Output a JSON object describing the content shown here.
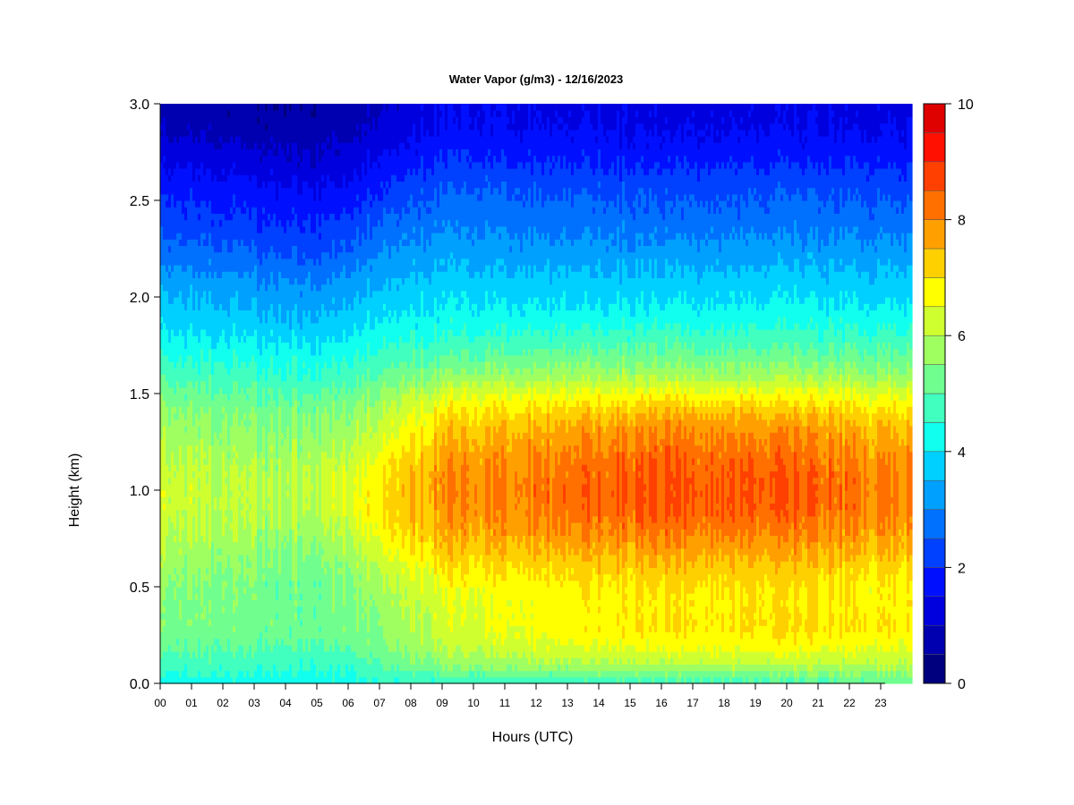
{
  "chart_data": {
    "type": "heatmap",
    "title": "Water Vapor (g/m3) - 12/16/2023",
    "xlabel": "Hours (UTC)",
    "ylabel": "Height (km)",
    "x_tick_labels": [
      "00",
      "01",
      "02",
      "03",
      "04",
      "05",
      "06",
      "07",
      "08",
      "09",
      "10",
      "11",
      "12",
      "13",
      "14",
      "15",
      "16",
      "17",
      "18",
      "19",
      "20",
      "21",
      "22",
      "23"
    ],
    "xlim": [
      0,
      24
    ],
    "y_tick_labels": [
      "0.0",
      "0.5",
      "1.0",
      "1.5",
      "2.0",
      "2.5",
      "3.0"
    ],
    "y_ticks": [
      0.0,
      0.5,
      1.0,
      1.5,
      2.0,
      2.5,
      3.0
    ],
    "ylim": [
      0,
      3.0
    ],
    "colorbar": {
      "min": 0,
      "max": 10,
      "levels": 20,
      "tick_values": [
        0,
        2,
        4,
        6,
        8,
        10
      ],
      "tick_labels": [
        "0",
        "2",
        "4",
        "6",
        "8",
        "10"
      ],
      "colors": [
        "#00007f",
        "#0000b0",
        "#0000df",
        "#0010ff",
        "#0040ff",
        "#0070ff",
        "#00a0ff",
        "#00d0ff",
        "#10ffef",
        "#40ffbf",
        "#70ff8f",
        "#a0ff60",
        "#d0ff30",
        "#ffff00",
        "#ffd000",
        "#ffa000",
        "#ff7000",
        "#ff4000",
        "#ff1000",
        "#df0000",
        "#7f0000"
      ]
    },
    "hours": [
      0,
      1,
      2,
      3,
      4,
      5,
      6,
      7,
      8,
      9,
      10,
      11,
      12,
      13,
      14,
      15,
      16,
      17,
      18,
      19,
      20,
      21,
      22,
      23,
      24
    ],
    "heights": [
      0.0,
      0.1,
      0.2,
      0.3,
      0.4,
      0.5,
      0.6,
      0.7,
      0.8,
      0.9,
      1.0,
      1.1,
      1.2,
      1.3,
      1.4,
      1.5,
      1.6,
      1.7,
      1.8,
      1.9,
      2.0,
      2.1,
      2.2,
      2.3,
      2.4,
      2.5,
      2.6,
      2.7,
      2.8,
      2.9,
      3.0
    ],
    "profiles": {
      "h00": [
        4.3,
        4.8,
        5.2,
        5.4,
        5.5,
        5.6,
        5.8,
        6.0,
        6.2,
        6.3,
        6.4,
        6.3,
        6.1,
        5.9,
        5.7,
        5.3,
        4.9,
        4.5,
        4.1,
        3.8,
        3.6,
        3.3,
        2.9,
        2.6,
        2.3,
        2.1,
        1.8,
        1.5,
        1.2,
        0.9,
        0.8
      ],
      "h03": [
        4.2,
        4.7,
        5.1,
        5.3,
        5.3,
        5.3,
        5.4,
        5.6,
        5.8,
        5.9,
        6.0,
        5.9,
        5.7,
        5.5,
        5.3,
        5.0,
        4.6,
        4.3,
        3.9,
        3.6,
        3.3,
        3.0,
        2.6,
        2.3,
        2.0,
        1.8,
        1.5,
        1.2,
        0.9,
        0.7,
        0.6
      ],
      "h05": [
        4.2,
        4.6,
        5.0,
        5.2,
        5.2,
        5.2,
        5.3,
        5.5,
        5.8,
        6.0,
        6.1,
        6.0,
        5.8,
        5.6,
        5.4,
        5.0,
        4.6,
        4.2,
        3.8,
        3.5,
        3.2,
        2.9,
        2.5,
        2.2,
        1.9,
        1.7,
        1.4,
        1.1,
        0.9,
        0.7,
        0.6
      ],
      "h07": [
        4.4,
        4.9,
        5.3,
        5.5,
        5.6,
        5.7,
        6.0,
        6.3,
        6.6,
        6.8,
        6.8,
        6.7,
        6.4,
        6.1,
        5.8,
        5.4,
        5.0,
        4.6,
        4.2,
        3.9,
        3.6,
        3.3,
        3.0,
        2.7,
        2.4,
        2.1,
        1.8,
        1.5,
        1.2,
        1.0,
        0.9
      ],
      "h09": [
        4.6,
        5.6,
        6.1,
        6.3,
        6.4,
        6.6,
        7.0,
        7.4,
        7.7,
        7.9,
        8.0,
        7.9,
        7.7,
        7.4,
        7.0,
        6.4,
        5.6,
        5.0,
        4.5,
        4.2,
        3.9,
        3.7,
        3.4,
        3.2,
        2.9,
        2.7,
        2.4,
        2.1,
        1.8,
        1.6,
        1.5
      ],
      "h12": [
        4.6,
        5.8,
        6.4,
        6.7,
        6.7,
        6.8,
        7.1,
        7.5,
        7.9,
        8.1,
        8.2,
        8.1,
        7.9,
        7.6,
        7.2,
        6.5,
        5.7,
        5.1,
        4.6,
        4.2,
        3.9,
        3.6,
        3.3,
        3.0,
        2.8,
        2.6,
        2.3,
        2.0,
        1.7,
        1.5,
        1.4
      ],
      "h16": [
        4.7,
        6.0,
        6.7,
        7.0,
        6.9,
        7.0,
        7.4,
        7.8,
        8.2,
        8.5,
        8.6,
        8.5,
        8.3,
        8.0,
        7.5,
        6.7,
        5.8,
        5.2,
        4.7,
        4.2,
        3.9,
        3.6,
        3.3,
        3.0,
        2.7,
        2.5,
        2.2,
        1.9,
        1.6,
        1.4,
        1.3
      ],
      "h20": [
        4.8,
        6.1,
        6.8,
        7.1,
        7.0,
        7.1,
        7.4,
        7.8,
        8.2,
        8.5,
        8.6,
        8.5,
        8.3,
        8.0,
        7.5,
        6.7,
        5.8,
        5.2,
        4.7,
        4.3,
        4.0,
        3.7,
        3.4,
        3.1,
        2.8,
        2.6,
        2.3,
        2.0,
        1.7,
        1.5,
        1.4
      ],
      "h23": [
        5.0,
        6.0,
        6.6,
        7.0,
        6.8,
        6.8,
        7.1,
        7.5,
        7.8,
        8.0,
        8.1,
        8.0,
        7.8,
        7.5,
        7.1,
        6.4,
        5.6,
        5.0,
        4.6,
        4.2,
        3.9,
        3.6,
        3.3,
        3.0,
        2.7,
        2.5,
        2.2,
        1.9,
        1.6,
        1.4,
        1.3
      ]
    },
    "grid": false,
    "legend": "colorbar-right"
  }
}
